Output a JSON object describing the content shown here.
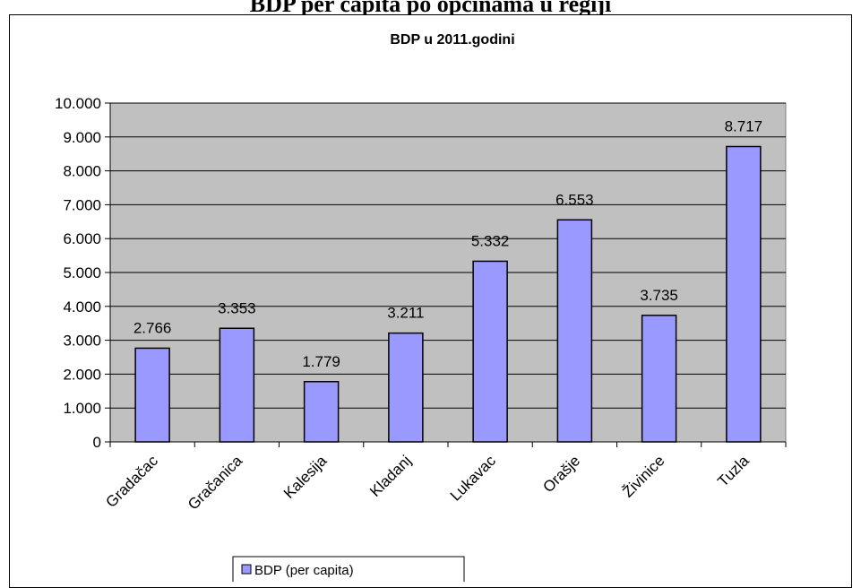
{
  "document": {
    "heading": "BDP per capita po općinama u regiji"
  },
  "chart_data": {
    "type": "bar",
    "title": "BDP u 2011.godini",
    "categories": [
      "Gradačac",
      "Gračanica",
      "Kalesija",
      "Kladanj",
      "Lukavac",
      "Orašje",
      "Živinice",
      "Tuzla"
    ],
    "series": [
      {
        "name": "BDP (per capita)",
        "values": [
          2766,
          3353,
          1779,
          3211,
          5332,
          6553,
          3735,
          8717
        ],
        "data_labels": [
          "2.766",
          "3.353",
          "1.779",
          "3.211",
          "5.332",
          "6.553",
          "3.735",
          "8.717"
        ]
      }
    ],
    "ylim": [
      0,
      10000
    ],
    "yticks": [
      0,
      1000,
      2000,
      3000,
      4000,
      5000,
      6000,
      7000,
      8000,
      9000,
      10000
    ],
    "ytick_labels": [
      "0",
      "1.000",
      "2.000",
      "3.000",
      "4.000",
      "5.000",
      "6.000",
      "7.000",
      "8.000",
      "9.000",
      "10.000"
    ],
    "xlabel": "",
    "ylabel": "",
    "grid": true,
    "legend_position": "bottom",
    "colors": {
      "bar_fill": "#9999ff",
      "bar_stroke": "#000000",
      "plot_background": "#c0c0c0",
      "gridline": "#000000"
    }
  }
}
